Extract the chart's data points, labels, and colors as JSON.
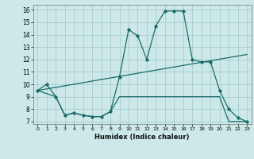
{
  "xlabel": "Humidex (Indice chaleur)",
  "xlim": [
    -0.5,
    23.5
  ],
  "ylim": [
    6.8,
    16.4
  ],
  "xticks": [
    0,
    1,
    2,
    3,
    4,
    5,
    6,
    7,
    8,
    9,
    10,
    11,
    12,
    13,
    14,
    15,
    16,
    17,
    18,
    19,
    20,
    21,
    22,
    23
  ],
  "yticks": [
    7,
    8,
    9,
    10,
    11,
    12,
    13,
    14,
    15,
    16
  ],
  "bg_color": "#cce8e8",
  "grid_color": "#aacccc",
  "line_color": "#1a6b6b",
  "line1_x": [
    0,
    1,
    2,
    3,
    4,
    5,
    6,
    7,
    8,
    9,
    10,
    11,
    12,
    13,
    14,
    15,
    16,
    17,
    18,
    19,
    20,
    21,
    22,
    23
  ],
  "line1_y": [
    9.5,
    10.0,
    9.0,
    7.5,
    7.7,
    7.5,
    7.4,
    7.4,
    7.8,
    10.6,
    14.4,
    13.9,
    12.0,
    14.7,
    15.9,
    15.9,
    15.9,
    12.0,
    11.8,
    11.8,
    9.5,
    8.0,
    7.3,
    7.0
  ],
  "line2_x": [
    0,
    2,
    3,
    4,
    5,
    6,
    7,
    8,
    9,
    10,
    11,
    12,
    13,
    14,
    15,
    16,
    17,
    18,
    19,
    20,
    21,
    22,
    23
  ],
  "line2_y": [
    9.5,
    9.0,
    7.5,
    7.7,
    7.5,
    7.4,
    7.4,
    7.8,
    9.0,
    9.0,
    9.0,
    9.0,
    9.0,
    9.0,
    9.0,
    9.0,
    9.0,
    9.0,
    9.0,
    9.0,
    7.0,
    7.0,
    7.0
  ],
  "line3_x": [
    0,
    23
  ],
  "line3_y": [
    9.5,
    12.4
  ]
}
